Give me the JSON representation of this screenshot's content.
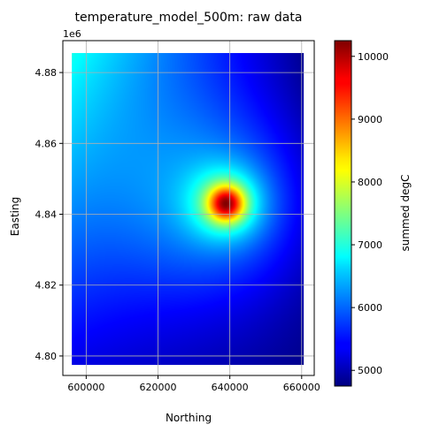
{
  "chart_data": {
    "type": "heatmap",
    "title": "temperature_model_500m: raw data",
    "xlabel": "Northing",
    "ylabel": "Easting",
    "y_offset_text": "1e6",
    "colorbar_label": "summed degC",
    "colormap": "jet",
    "grid": true,
    "xlim": [
      593500,
      663500
    ],
    "ylim": [
      4794500,
      4889000
    ],
    "x_ticks": [
      600000,
      620000,
      640000,
      660000
    ],
    "x_tick_labels": [
      "600000",
      "620000",
      "640000",
      "660000"
    ],
    "y_ticks": [
      4800000,
      4820000,
      4840000,
      4860000,
      4880000
    ],
    "y_tick_labels": [
      "4.80",
      "4.82",
      "4.84",
      "4.86",
      "4.88"
    ],
    "data_extent": {
      "x": [
        596000,
        660500
      ],
      "y": [
        4797500,
        4885500
      ]
    },
    "color_range": [
      4750,
      10250
    ],
    "colorbar_ticks": [
      5000,
      6000,
      7000,
      8000,
      9000,
      10000
    ],
    "colorbar_tick_labels": [
      "5000",
      "6000",
      "7000",
      "8000",
      "9000",
      "10000"
    ],
    "peak": {
      "x": 639000,
      "y": 4843000,
      "value": 10200
    },
    "corner_values": {
      "top_left": 6900,
      "top_right": 4800,
      "bottom_left": 5300,
      "bottom_right": 4800
    }
  }
}
